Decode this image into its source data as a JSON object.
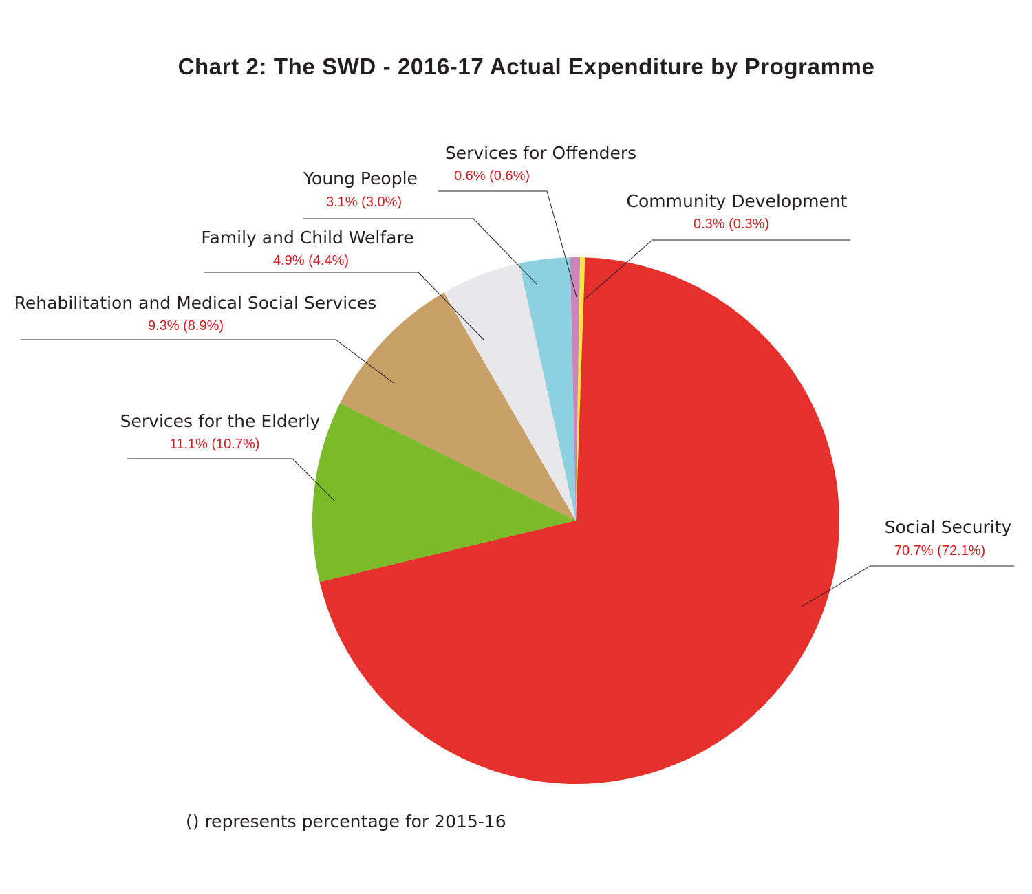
{
  "chart_data": {
    "type": "pie",
    "title": "Chart 2: The SWD - 2016-17 Actual Expenditure by Programme",
    "slices": [
      {
        "name": "Social Security",
        "value": 70.7,
        "previous": 72.1,
        "label": "70.7% (72.1%)",
        "color": "#e6302b"
      },
      {
        "name": "Services for the Elderly",
        "value": 11.1,
        "previous": 10.7,
        "label": "11.1% (10.7%)",
        "color": "#7bbb2a"
      },
      {
        "name": "Rehabilitation and Medical Social Services",
        "value": 9.3,
        "previous": 8.9,
        "label": "9.3% (8.9%)",
        "color": "#c89f66"
      },
      {
        "name": "Family and Child Welfare",
        "value": 4.9,
        "previous": 4.4,
        "label": "4.9% (4.4%)",
        "color": "#e8e8ea"
      },
      {
        "name": "Young People",
        "value": 3.1,
        "previous": 3.0,
        "label": "3.1% (3.0%)",
        "color": "#8dd0df"
      },
      {
        "name": "Services for Offenders",
        "value": 0.6,
        "previous": 0.6,
        "label": "0.6% (0.6%)",
        "color": "#cc85b9"
      },
      {
        "name": "Community Development",
        "value": 0.3,
        "previous": 0.3,
        "label": "0.3% (0.3%)",
        "color": "#f5ea3a"
      }
    ],
    "note": "() represents percentage for 2015-16"
  }
}
